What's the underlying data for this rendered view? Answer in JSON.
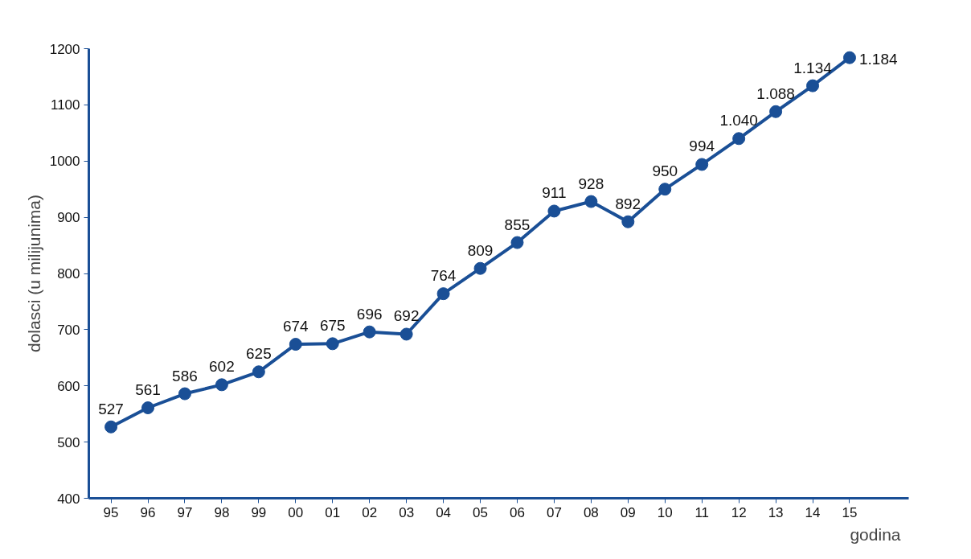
{
  "chart_data": {
    "type": "line",
    "xlabel": "godina",
    "ylabel": "dolasci (u milijunima)",
    "x": [
      1995,
      1996,
      1997,
      1998,
      1999,
      2000,
      2001,
      2002,
      2003,
      2004,
      2005,
      2006,
      2007,
      2008,
      2009,
      2010,
      2011,
      2012,
      2013,
      2014,
      2015
    ],
    "series": [
      {
        "color": "#1a4f96",
        "values": [
          527,
          561,
          586,
          602,
          625,
          674,
          675,
          696,
          692,
          764,
          809,
          855,
          911,
          928,
          892,
          950,
          994,
          1040,
          1088,
          1134,
          1184
        ],
        "value_labels": [
          "527",
          "561",
          "586",
          "602",
          "625",
          "674",
          "675",
          "696",
          "692",
          "764",
          "809",
          "855",
          "911",
          "928",
          "892",
          "950",
          "994",
          "1.040",
          "1.088",
          "1.134",
          "1.184"
        ]
      }
    ],
    "xlim": [
      1994.4,
      2016.6
    ],
    "xticks": [
      {
        "value": 1995,
        "label": "95"
      },
      {
        "value": 1996,
        "label": "96"
      },
      {
        "value": 1997,
        "label": "97"
      },
      {
        "value": 1998,
        "label": "98"
      },
      {
        "value": 1999,
        "label": "99"
      },
      {
        "value": 2000,
        "label": "00"
      },
      {
        "value": 2001,
        "label": "01"
      },
      {
        "value": 2002,
        "label": "02"
      },
      {
        "value": 2003,
        "label": "03"
      },
      {
        "value": 2004,
        "label": "04"
      },
      {
        "value": 2005,
        "label": "05"
      },
      {
        "value": 2006,
        "label": "06"
      },
      {
        "value": 2007,
        "label": "07"
      },
      {
        "value": 2008,
        "label": "08"
      },
      {
        "value": 2009,
        "label": "09"
      },
      {
        "value": 2010,
        "label": "10"
      },
      {
        "value": 2011,
        "label": "11"
      },
      {
        "value": 2012,
        "label": "12"
      },
      {
        "value": 2013,
        "label": "13"
      },
      {
        "value": 2014,
        "label": "14"
      },
      {
        "value": 2015,
        "label": "15"
      }
    ],
    "ylim": [
      400,
      1200
    ],
    "yticks": [
      400,
      500,
      600,
      700,
      800,
      900,
      1000,
      1100,
      1200
    ],
    "grid": false,
    "marker": "circle",
    "line_style": "solid"
  }
}
